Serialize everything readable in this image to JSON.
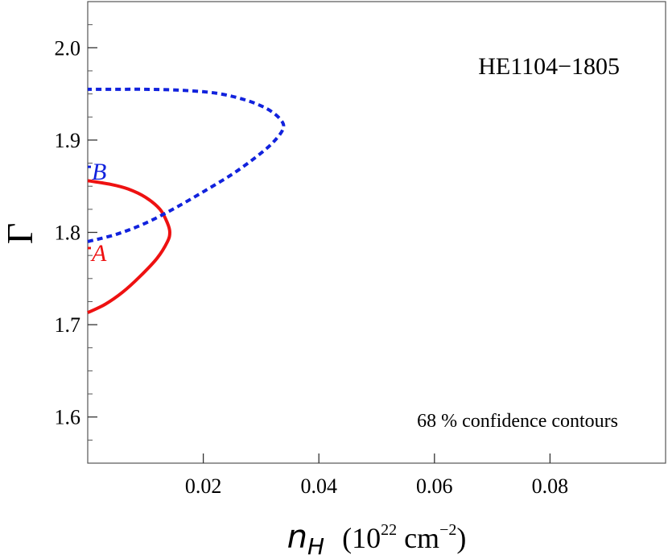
{
  "chart_data": {
    "type": "line",
    "title": "",
    "subtitle": "",
    "annotations": {
      "object_name": "HE1104−1805",
      "confidence_note": "68 % confidence contours"
    },
    "xlabel": {
      "symbol": "n",
      "subscript": "H",
      "units_prefix": "(10",
      "units_exp": "22",
      "units_mid": " cm",
      "units_exp2": "−2",
      "units_suffix": ")"
    },
    "ylabel": "Γ",
    "xlim": [
      0.0,
      0.1
    ],
    "ylim": [
      1.55,
      2.05
    ],
    "xticks": [
      0.02,
      0.04,
      0.06,
      0.08
    ],
    "xtick_labels": [
      "0.02",
      "0.04",
      "0.06",
      "0.08"
    ],
    "yticks": [
      1.6,
      1.7,
      1.8,
      1.9,
      2.0
    ],
    "ytick_labels": [
      "1.6",
      "1.7",
      "1.8",
      "1.9",
      "2.0"
    ],
    "grid": false,
    "legend": "none",
    "series": [
      {
        "label": "A",
        "color": "#ee1111",
        "style": "solid",
        "best_fit": {
          "x": 0.0,
          "y": 1.783
        },
        "points": [
          [
            0.0,
            1.713
          ],
          [
            0.003,
            1.722
          ],
          [
            0.006,
            1.735
          ],
          [
            0.009,
            1.752
          ],
          [
            0.012,
            1.772
          ],
          [
            0.0138,
            1.79
          ],
          [
            0.0142,
            1.8
          ],
          [
            0.0138,
            1.81
          ],
          [
            0.0125,
            1.825
          ],
          [
            0.01,
            1.838
          ],
          [
            0.007,
            1.847
          ],
          [
            0.004,
            1.852
          ],
          [
            0.0,
            1.856
          ]
        ]
      },
      {
        "label": "B",
        "color": "#1122dd",
        "style": "dashed",
        "best_fit": {
          "x": 0.0,
          "y": 1.871
        },
        "points": [
          [
            0.0,
            1.79
          ],
          [
            0.005,
            1.798
          ],
          [
            0.01,
            1.81
          ],
          [
            0.015,
            1.826
          ],
          [
            0.02,
            1.844
          ],
          [
            0.025,
            1.863
          ],
          [
            0.029,
            1.881
          ],
          [
            0.032,
            1.897
          ],
          [
            0.0338,
            1.912
          ],
          [
            0.0334,
            1.922
          ],
          [
            0.031,
            1.934
          ],
          [
            0.027,
            1.944
          ],
          [
            0.022,
            1.951
          ],
          [
            0.016,
            1.954
          ],
          [
            0.01,
            1.955
          ],
          [
            0.005,
            1.955
          ],
          [
            0.0,
            1.955
          ]
        ]
      }
    ]
  }
}
